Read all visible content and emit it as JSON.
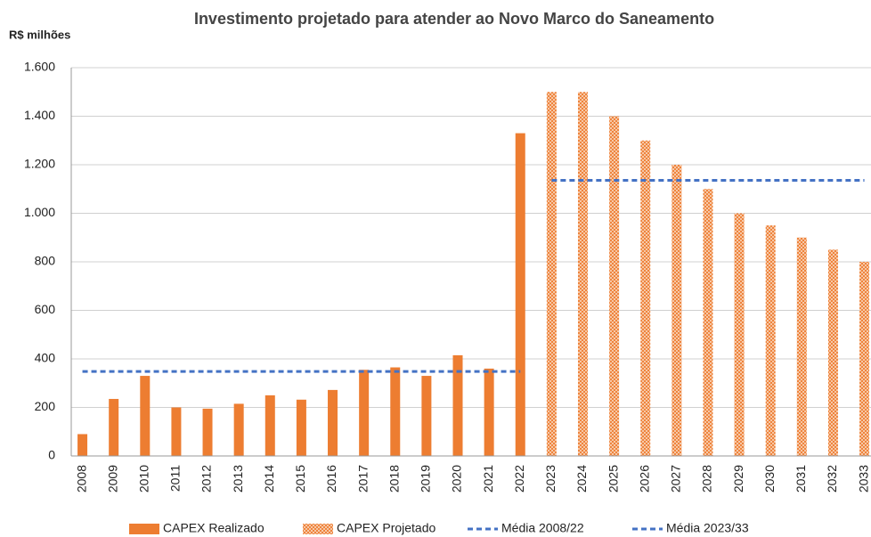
{
  "chart_data": {
    "type": "bar",
    "title": "Investimento projetado para atender ao Novo Marco do Saneamento",
    "y_label": "R$ milhões",
    "categories": [
      "2008",
      "2009",
      "2010",
      "2011",
      "2012",
      "2013",
      "2014",
      "2015",
      "2016",
      "2017",
      "2018",
      "2019",
      "2020",
      "2021",
      "2022",
      "2023",
      "2024",
      "2025",
      "2026",
      "2027",
      "2028",
      "2029",
      "2030",
      "2031",
      "2032",
      "2033"
    ],
    "series": [
      {
        "name": "CAPEX Realizado",
        "type": "bar",
        "color": "#ed7d31",
        "hatch": false,
        "values": [
          90,
          235,
          330,
          200,
          195,
          215,
          250,
          232,
          272,
          355,
          365,
          330,
          415,
          360,
          1330,
          null,
          null,
          null,
          null,
          null,
          null,
          null,
          null,
          null,
          null,
          null
        ]
      },
      {
        "name": "CAPEX Projetado",
        "type": "bar",
        "color": "#ed7d31",
        "hatch": true,
        "values": [
          null,
          null,
          null,
          null,
          null,
          null,
          null,
          null,
          null,
          null,
          null,
          null,
          null,
          null,
          null,
          1500,
          1500,
          1400,
          1300,
          1200,
          1100,
          1000,
          950,
          900,
          850,
          800
        ]
      },
      {
        "name": "Média 2008/22",
        "type": "line",
        "color": "#4472c4",
        "dash": true,
        "values": [
          348,
          348,
          348,
          348,
          348,
          348,
          348,
          348,
          348,
          348,
          348,
          348,
          348,
          348,
          348,
          null,
          null,
          null,
          null,
          null,
          null,
          null,
          null,
          null,
          null,
          null
        ]
      },
      {
        "name": "Média 2023/33",
        "type": "line",
        "color": "#4472c4",
        "dash": true,
        "values": [
          null,
          null,
          null,
          null,
          null,
          null,
          null,
          null,
          null,
          null,
          null,
          null,
          null,
          null,
          null,
          1136,
          1136,
          1136,
          1136,
          1136,
          1136,
          1136,
          1136,
          1136,
          1136,
          1136
        ]
      }
    ],
    "ylim": [
      0,
      1600
    ],
    "yticks": [
      0,
      200,
      400,
      600,
      800,
      {
        "value": 1000,
        "label": "1.000"
      },
      {
        "value": 1200,
        "label": "1.200"
      },
      {
        "value": 1400,
        "label": "1.400"
      },
      {
        "value": 1600,
        "label": "1.600"
      }
    ],
    "grid": true,
    "legend": "bottom"
  }
}
